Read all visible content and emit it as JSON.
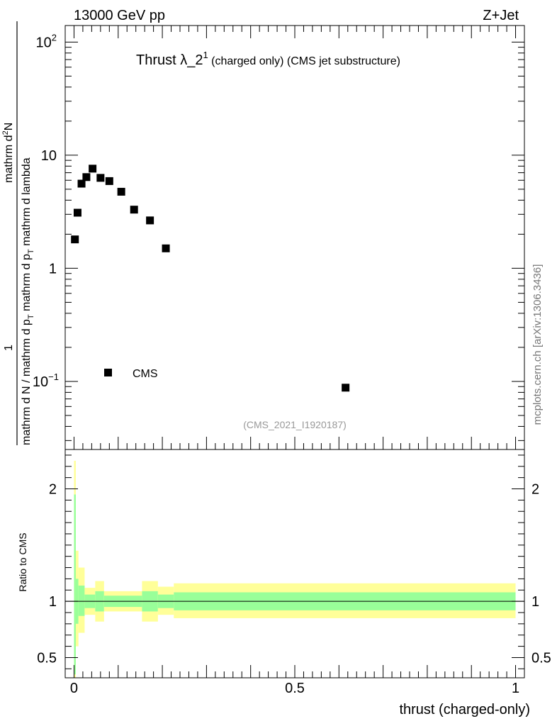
{
  "header": {
    "left": "13000 GeV pp",
    "right": "Z+Jet"
  },
  "plot_title": {
    "main": "Thrust λ_2",
    "sup": "1",
    "tail": " (charged only) (CMS jet substructure)"
  },
  "y_label": {
    "line1": "mathrm d N / mathrm d p",
    "line1_sub": "T",
    "line1_tail": " mathrm d p",
    "line1_sub2": "T",
    "line1_tail2": " mathrm d lambda",
    "numerator": "1",
    "top": "mathrm d",
    "top_sup": "2",
    "top_tail": "N"
  },
  "watermark": "mcplots.cern.ch [arXiv:1306.3436]",
  "analysis_id": "(CMS_2021_I1920187)",
  "legend": {
    "entry": "CMS",
    "placement": "center-left"
  },
  "ratio_ylabel": "Ratio to CMS",
  "x_title": "thrust (charged-only)",
  "colors": {
    "band_outer": "#ffff99",
    "band_inner": "#99ff99",
    "marker": "#000000"
  },
  "chart_data": [
    {
      "type": "scatter",
      "panel": "main",
      "yscale": "log",
      "ylim": [
        0.025,
        140
      ],
      "xlim": [
        -0.02,
        1.02
      ],
      "y_ticks": [
        {
          "value": 0.1,
          "base": "10",
          "exp": "−1"
        },
        {
          "value": 1,
          "base": "1",
          "exp": ""
        },
        {
          "value": 10,
          "base": "10",
          "exp": ""
        },
        {
          "value": 100,
          "base": "10",
          "exp": "2"
        }
      ],
      "series": [
        {
          "name": "CMS",
          "x": [
            0.002,
            0.008,
            0.017,
            0.028,
            0.042,
            0.06,
            0.08,
            0.107,
            0.136,
            0.172,
            0.208,
            0.615
          ],
          "y": [
            1.8,
            3.1,
            5.6,
            6.4,
            7.6,
            6.3,
            5.9,
            4.75,
            3.3,
            2.65,
            1.5,
            0.088
          ]
        }
      ]
    },
    {
      "type": "area",
      "panel": "ratio",
      "ylim": [
        0.32,
        2.35
      ],
      "xlim": [
        -0.02,
        1.02
      ],
      "y_ticks": [
        {
          "value": 0.5,
          "label": "0.5"
        },
        {
          "value": 1,
          "label": "1"
        },
        {
          "value": 2,
          "label": "2"
        }
      ],
      "x_ticks": [
        {
          "value": 0,
          "label": "0"
        },
        {
          "value": 0.5,
          "label": "0.5"
        },
        {
          "value": 1,
          "label": "1"
        }
      ],
      "reference": 1,
      "bins": [
        {
          "x0": 0.0,
          "x1": 0.004,
          "outer": [
            0.32,
            2.25
          ],
          "inner": [
            0.35,
            1.95
          ]
        },
        {
          "x0": 0.004,
          "x1": 0.01,
          "outer": [
            0.6,
            1.45
          ],
          "inner": [
            0.8,
            1.2
          ]
        },
        {
          "x0": 0.01,
          "x1": 0.024,
          "outer": [
            0.72,
            1.3
          ],
          "inner": [
            0.87,
            1.14
          ]
        },
        {
          "x0": 0.024,
          "x1": 0.048,
          "outer": [
            0.88,
            1.12
          ],
          "inner": [
            0.94,
            1.06
          ]
        },
        {
          "x0": 0.048,
          "x1": 0.068,
          "outer": [
            0.82,
            1.18
          ],
          "inner": [
            0.91,
            1.09
          ]
        },
        {
          "x0": 0.068,
          "x1": 0.154,
          "outer": [
            0.91,
            1.09
          ],
          "inner": [
            0.95,
            1.05
          ]
        },
        {
          "x0": 0.154,
          "x1": 0.19,
          "outer": [
            0.82,
            1.18
          ],
          "inner": [
            0.91,
            1.09
          ]
        },
        {
          "x0": 0.19,
          "x1": 0.226,
          "outer": [
            0.88,
            1.13
          ],
          "inner": [
            0.94,
            1.06
          ]
        },
        {
          "x0": 0.226,
          "x1": 1.0,
          "outer": [
            0.85,
            1.16
          ],
          "inner": [
            0.92,
            1.08
          ]
        }
      ]
    }
  ]
}
